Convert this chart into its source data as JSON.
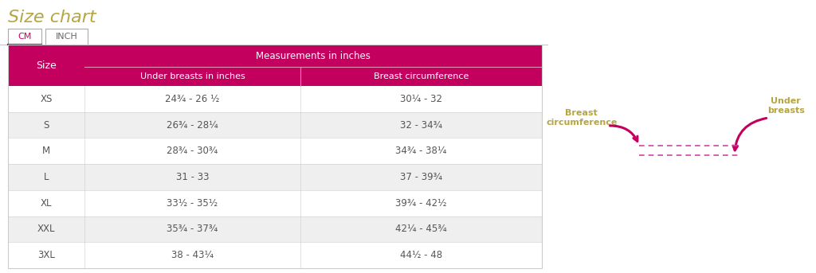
{
  "title": "Size chart",
  "title_color": "#b5a642",
  "title_fontsize": 16,
  "tab_cm": "CM",
  "tab_inch": "INCH",
  "header_bg": "#c4005f",
  "header_text_color": "#ffffff",
  "measurements_label": "Measurements in inches",
  "col1_header": "Under breasts in inches",
  "col2_header": "Breast circumference",
  "size_col_label": "Size",
  "sizes": [
    "XS",
    "S",
    "M",
    "L",
    "XL",
    "XXL",
    "3XL"
  ],
  "under_breast": [
    "24¾ - 26 ½",
    "26¾ - 28¼",
    "28¾ - 30¾",
    "31 - 33",
    "33½ - 35½",
    "35¾ - 37¾",
    "38 - 43¼"
  ],
  "breast_circ": [
    "30¼ - 32",
    "32 - 34¾",
    "34¾ - 38¼",
    "37 - 39¾",
    "39¾ - 42½",
    "42¼ - 45¾",
    "44½ - 48"
  ],
  "row_bg_even": "#efefef",
  "row_bg_odd": "#ffffff",
  "row_text_color": "#555555",
  "table_border_color": "#cccccc",
  "bg_color": "#ffffff",
  "annotation_color": "#b5a642",
  "arrow_color": "#c4005f",
  "breast_circ_label": "Breast\ncircumference",
  "under_breasts_label": "Under\nbreasts",
  "tab_active_color": "#c4005f",
  "tab_inactive_color": "#666666",
  "tab_border_color": "#aaaaaa"
}
